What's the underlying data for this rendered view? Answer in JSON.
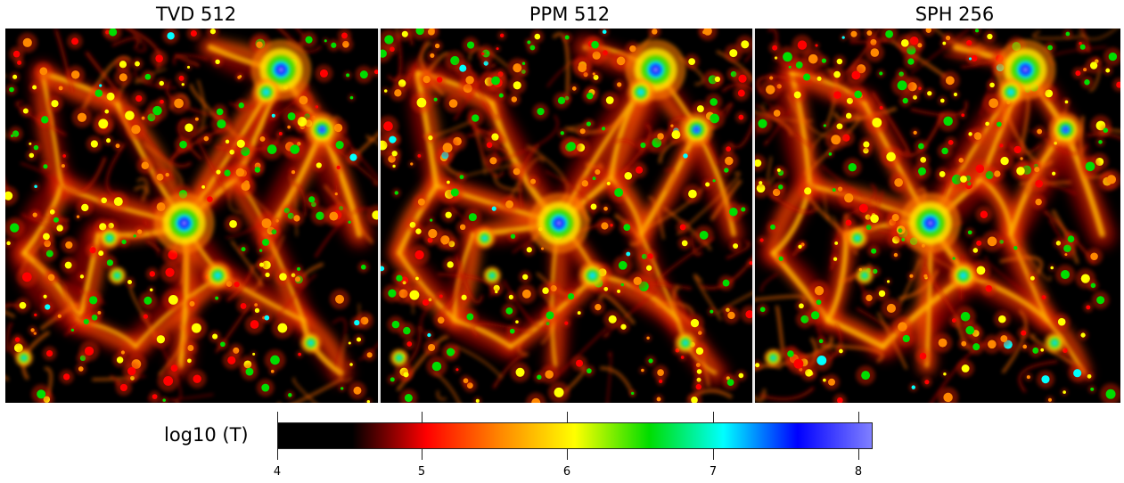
{
  "panels": [
    {
      "title": "TVD 512"
    },
    {
      "title": "PPM 512"
    },
    {
      "title": "SPH 256"
    }
  ],
  "colorbar": {
    "label": "log10 (T)",
    "min": 4,
    "max": 8.1,
    "ticks": [
      "4",
      "5",
      "6",
      "7",
      "8"
    ],
    "colors": [
      "#000000",
      "#000000",
      "#ff0000",
      "#ff8800",
      "#ffff00",
      "#00dd00",
      "#00ffff",
      "#0000ff",
      "#8080ff"
    ]
  }
}
